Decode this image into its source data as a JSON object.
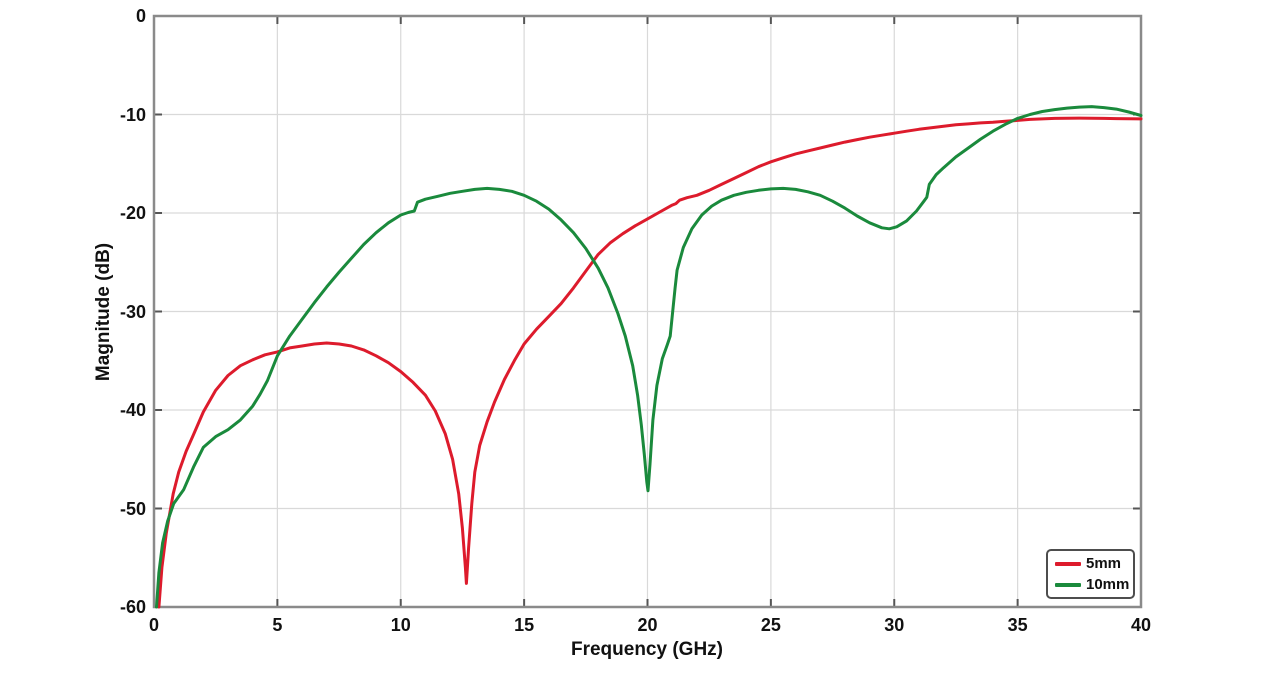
{
  "figure": {
    "background": "#ffffff",
    "frame_color": "#8a8a8a",
    "grid_color": "#d9d9d9",
    "tick_color": "#555555",
    "text_color": "#111111"
  },
  "legend": {
    "position": "lower-right",
    "entries": [
      {
        "label": "5mm",
        "color": "#dd1b2c"
      },
      {
        "label": "10mm",
        "color": "#1a8a3c"
      }
    ]
  },
  "chart_data": {
    "type": "line",
    "title": "",
    "xlabel": "Frequency (GHz)",
    "ylabel": "Magnitude (dB)",
    "xlim": [
      0,
      40
    ],
    "ylim": [
      -60,
      0
    ],
    "x_ticks": [
      0,
      5,
      10,
      15,
      20,
      25,
      30,
      35,
      40
    ],
    "y_ticks": [
      0,
      -10,
      -20,
      -30,
      -40,
      -50,
      -60
    ],
    "grid": true,
    "legend_position": "lower right",
    "series": [
      {
        "name": "5mm",
        "color": "#dd1b2c",
        "points": [
          [
            0.2,
            -60
          ],
          [
            0.32,
            -56
          ],
          [
            0.5,
            -52.5
          ],
          [
            0.78,
            -48.5
          ],
          [
            1,
            -46.3
          ],
          [
            1.3,
            -44.2
          ],
          [
            1.6,
            -42.5
          ],
          [
            2,
            -40.2
          ],
          [
            2.5,
            -38
          ],
          [
            3,
            -36.5
          ],
          [
            3.5,
            -35.5
          ],
          [
            4,
            -34.9
          ],
          [
            4.5,
            -34.4
          ],
          [
            5,
            -34.1
          ],
          [
            5.5,
            -33.7
          ],
          [
            6,
            -33.5
          ],
          [
            6.5,
            -33.3
          ],
          [
            7,
            -33.2
          ],
          [
            7.5,
            -33.3
          ],
          [
            8,
            -33.5
          ],
          [
            8.5,
            -33.9
          ],
          [
            9,
            -34.5
          ],
          [
            9.5,
            -35.2
          ],
          [
            10,
            -36.1
          ],
          [
            10.5,
            -37.2
          ],
          [
            11,
            -38.5
          ],
          [
            11.4,
            -40.1
          ],
          [
            11.8,
            -42.4
          ],
          [
            12.1,
            -45
          ],
          [
            12.35,
            -48.5
          ],
          [
            12.5,
            -52
          ],
          [
            12.62,
            -56
          ],
          [
            12.66,
            -57.6
          ],
          [
            12.75,
            -54
          ],
          [
            12.88,
            -49.5
          ],
          [
            13,
            -46.3
          ],
          [
            13.2,
            -43.6
          ],
          [
            13.5,
            -41.2
          ],
          [
            13.8,
            -39.2
          ],
          [
            14.2,
            -36.9
          ],
          [
            14.6,
            -35
          ],
          [
            15,
            -33.3
          ],
          [
            15.5,
            -31.8
          ],
          [
            16,
            -30.5
          ],
          [
            16.5,
            -29.2
          ],
          [
            17,
            -27.6
          ],
          [
            17.5,
            -25.9
          ],
          [
            18,
            -24.2
          ],
          [
            18.5,
            -23
          ],
          [
            19,
            -22.1
          ],
          [
            19.5,
            -21.3
          ],
          [
            20,
            -20.6
          ],
          [
            20.5,
            -19.9
          ],
          [
            21,
            -19.2
          ],
          [
            21.15,
            -19.05
          ],
          [
            21.3,
            -18.7
          ],
          [
            21.6,
            -18.45
          ],
          [
            22,
            -18.2
          ],
          [
            22.5,
            -17.7
          ],
          [
            23,
            -17.1
          ],
          [
            23.5,
            -16.5
          ],
          [
            24,
            -15.9
          ],
          [
            24.5,
            -15.3
          ],
          [
            25,
            -14.8
          ],
          [
            25.5,
            -14.4
          ],
          [
            26,
            -14
          ],
          [
            26.5,
            -13.7
          ],
          [
            27,
            -13.4
          ],
          [
            27.5,
            -13.1
          ],
          [
            28,
            -12.8
          ],
          [
            28.5,
            -12.55
          ],
          [
            29,
            -12.3
          ],
          [
            29.5,
            -12.1
          ],
          [
            30,
            -11.9
          ],
          [
            30.5,
            -11.7
          ],
          [
            31,
            -11.5
          ],
          [
            31.5,
            -11.35
          ],
          [
            32,
            -11.2
          ],
          [
            32.5,
            -11.05
          ],
          [
            33,
            -10.95
          ],
          [
            33.5,
            -10.85
          ],
          [
            34,
            -10.78
          ],
          [
            34.5,
            -10.68
          ],
          [
            35,
            -10.6
          ],
          [
            35.5,
            -10.5
          ],
          [
            36,
            -10.45
          ],
          [
            36.5,
            -10.4
          ],
          [
            37,
            -10.38
          ],
          [
            37.5,
            -10.37
          ],
          [
            38,
            -10.38
          ],
          [
            38.5,
            -10.4
          ],
          [
            39,
            -10.42
          ],
          [
            39.5,
            -10.44
          ],
          [
            40,
            -10.45
          ]
        ]
      },
      {
        "name": "10mm",
        "color": "#1a8a3c",
        "points": [
          [
            0.1,
            -60
          ],
          [
            0.2,
            -56.5
          ],
          [
            0.35,
            -53.5
          ],
          [
            0.55,
            -51.3
          ],
          [
            0.8,
            -49.5
          ],
          [
            1.2,
            -48.1
          ],
          [
            1.6,
            -45.8
          ],
          [
            2,
            -43.8
          ],
          [
            2.5,
            -42.7
          ],
          [
            3,
            -42
          ],
          [
            3.5,
            -41
          ],
          [
            4,
            -39.6
          ],
          [
            4.3,
            -38.4
          ],
          [
            4.6,
            -37
          ],
          [
            5,
            -34.5
          ],
          [
            5.5,
            -32.5
          ],
          [
            6,
            -30.8
          ],
          [
            6.5,
            -29.1
          ],
          [
            7,
            -27.5
          ],
          [
            7.5,
            -26
          ],
          [
            8,
            -24.6
          ],
          [
            8.5,
            -23.2
          ],
          [
            9,
            -22
          ],
          [
            9.5,
            -21
          ],
          [
            10,
            -20.2
          ],
          [
            10.3,
            -19.95
          ],
          [
            10.55,
            -19.8
          ],
          [
            10.68,
            -18.9
          ],
          [
            11,
            -18.6
          ],
          [
            11.5,
            -18.3
          ],
          [
            12,
            -18
          ],
          [
            12.5,
            -17.8
          ],
          [
            13,
            -17.6
          ],
          [
            13.5,
            -17.5
          ],
          [
            14,
            -17.6
          ],
          [
            14.5,
            -17.8
          ],
          [
            15,
            -18.2
          ],
          [
            15.5,
            -18.8
          ],
          [
            16,
            -19.6
          ],
          [
            16.5,
            -20.7
          ],
          [
            17,
            -22
          ],
          [
            17.5,
            -23.6
          ],
          [
            18,
            -25.6
          ],
          [
            18.4,
            -27.6
          ],
          [
            18.8,
            -30.2
          ],
          [
            19.1,
            -32.5
          ],
          [
            19.4,
            -35.5
          ],
          [
            19.6,
            -38.5
          ],
          [
            19.75,
            -41.5
          ],
          [
            19.87,
            -44.5
          ],
          [
            19.97,
            -47.3
          ],
          [
            20.02,
            -48.2
          ],
          [
            20.1,
            -45.5
          ],
          [
            20.22,
            -41
          ],
          [
            20.38,
            -37.5
          ],
          [
            20.6,
            -34.8
          ],
          [
            20.8,
            -33.4
          ],
          [
            20.92,
            -32.5
          ],
          [
            21.02,
            -30
          ],
          [
            21.12,
            -27.6
          ],
          [
            21.2,
            -25.8
          ],
          [
            21.45,
            -23.5
          ],
          [
            21.8,
            -21.6
          ],
          [
            22.2,
            -20.2
          ],
          [
            22.6,
            -19.3
          ],
          [
            23,
            -18.7
          ],
          [
            23.5,
            -18.2
          ],
          [
            24,
            -17.9
          ],
          [
            24.5,
            -17.7
          ],
          [
            25,
            -17.55
          ],
          [
            25.5,
            -17.5
          ],
          [
            26,
            -17.6
          ],
          [
            26.5,
            -17.85
          ],
          [
            27,
            -18.2
          ],
          [
            27.5,
            -18.8
          ],
          [
            28,
            -19.5
          ],
          [
            28.5,
            -20.3
          ],
          [
            29,
            -21
          ],
          [
            29.5,
            -21.5
          ],
          [
            29.8,
            -21.6
          ],
          [
            30.1,
            -21.4
          ],
          [
            30.5,
            -20.8
          ],
          [
            30.9,
            -19.8
          ],
          [
            31.2,
            -18.8
          ],
          [
            31.32,
            -18.4
          ],
          [
            31.42,
            -17.1
          ],
          [
            31.7,
            -16.1
          ],
          [
            32,
            -15.4
          ],
          [
            32.5,
            -14.3
          ],
          [
            33,
            -13.4
          ],
          [
            33.5,
            -12.5
          ],
          [
            34,
            -11.7
          ],
          [
            34.5,
            -11
          ],
          [
            35,
            -10.4
          ],
          [
            35.5,
            -10
          ],
          [
            36,
            -9.7
          ],
          [
            36.5,
            -9.5
          ],
          [
            37,
            -9.35
          ],
          [
            37.5,
            -9.25
          ],
          [
            38,
            -9.2
          ],
          [
            38.5,
            -9.3
          ],
          [
            39,
            -9.45
          ],
          [
            39.5,
            -9.75
          ],
          [
            40,
            -10.1
          ]
        ]
      }
    ]
  }
}
